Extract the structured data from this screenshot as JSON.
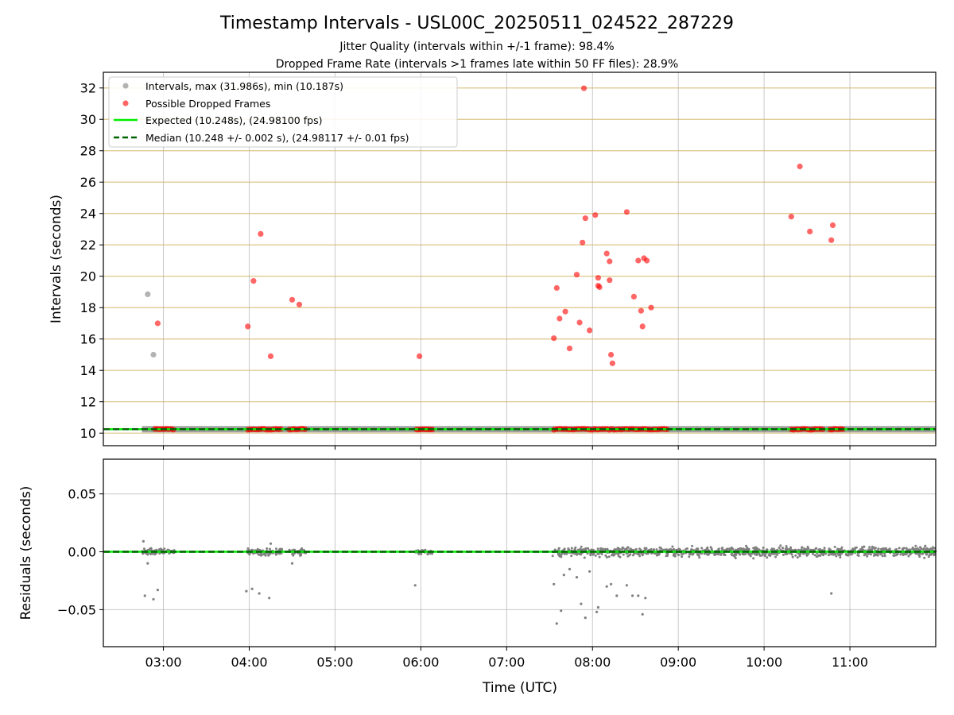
{
  "title": "Timestamp Intervals - USL00C_20250511_024522_287229",
  "subtitle1": "Jitter Quality (intervals within +/-1 frame): 98.4%",
  "subtitle2": "Dropped Frame Rate (intervals >1 frames late within 50 FF files): 28.9%",
  "colors": {
    "normal": "#808080",
    "dropped": "#ff0000",
    "expected": "#00ee00",
    "median": "#006400",
    "hgrid_top": "#d2b76a",
    "grid": "#b0b0b0"
  },
  "chart_data": [
    {
      "type": "scatter",
      "xlabel": "",
      "ylabel": "Intervals (seconds)",
      "xlim": [
        "02:18",
        "12:00"
      ],
      "ylim": [
        9.2,
        33.0
      ],
      "yticks": [
        10,
        12,
        14,
        16,
        18,
        20,
        22,
        24,
        26,
        28,
        30,
        32
      ],
      "xticks": [
        "03:00",
        "04:00",
        "05:00",
        "06:00",
        "07:00",
        "08:00",
        "09:00",
        "10:00",
        "11:00"
      ],
      "legend": {
        "placement": "top-left",
        "items": [
          "Intervals, max (31.986s), min (10.187s)",
          "Possible Dropped Frames",
          "Expected (10.248s), (24.98100 fps)",
          "Median (10.248 +/- 0.002 s), (24.98117 +/- 0.01 fps)"
        ]
      },
      "expected": 10.248,
      "median": 10.248,
      "normal_points": [
        [
          "02:49",
          18.85
        ],
        [
          "02:53",
          15.0
        ]
      ],
      "normal_baseline_ranges": [
        [
          "02:45",
          "12:00"
        ]
      ],
      "dropped_points": [
        [
          "02:56",
          17.0
        ],
        [
          "03:59",
          16.8
        ],
        [
          "04:03",
          19.7
        ],
        [
          "04:08",
          22.7
        ],
        [
          "04:15",
          14.9
        ],
        [
          "04:30",
          18.5
        ],
        [
          "04:35",
          18.2
        ],
        [
          "05:59",
          14.9
        ],
        [
          "07:33",
          16.05
        ],
        [
          "07:35",
          19.25
        ],
        [
          "07:37",
          17.3
        ],
        [
          "07:41",
          17.75
        ],
        [
          "07:44",
          15.4
        ],
        [
          "07:49",
          20.1
        ],
        [
          "07:51",
          17.05
        ],
        [
          "07:53",
          22.15
        ],
        [
          "07:54",
          31.98
        ],
        [
          "07:55",
          23.7
        ],
        [
          "07:58",
          16.55
        ],
        [
          "08:02",
          23.9
        ],
        [
          "08:04",
          19.9
        ],
        [
          "08:04",
          19.4
        ],
        [
          "08:05",
          19.3
        ],
        [
          "08:10",
          21.45
        ],
        [
          "08:12",
          20.95
        ],
        [
          "08:12",
          19.75
        ],
        [
          "08:13",
          15.0
        ],
        [
          "08:14",
          14.45
        ],
        [
          "08:24",
          24.1
        ],
        [
          "08:29",
          18.7
        ],
        [
          "08:32",
          21.0
        ],
        [
          "08:34",
          17.8
        ],
        [
          "08:35",
          16.8
        ],
        [
          "08:36",
          21.15
        ],
        [
          "08:38",
          21.0
        ],
        [
          "08:41",
          18.0
        ],
        [
          "10:19",
          23.8
        ],
        [
          "10:25",
          27.0
        ],
        [
          "10:32",
          22.85
        ],
        [
          "10:47",
          22.3
        ],
        [
          "10:48",
          23.25
        ]
      ],
      "dropped_baseline_ranges": [
        [
          "02:54",
          "03:07"
        ],
        [
          "03:59",
          "04:22"
        ],
        [
          "04:28",
          "04:39"
        ],
        [
          "05:57",
          "06:08"
        ],
        [
          "07:33",
          "08:52"
        ],
        [
          "10:19",
          "10:41"
        ],
        [
          "10:46",
          "10:55"
        ]
      ]
    },
    {
      "type": "scatter",
      "xlabel": "Time (UTC)",
      "ylabel": "Residuals (seconds)",
      "xlim": [
        "02:18",
        "12:00"
      ],
      "ylim": [
        -0.082,
        0.08
      ],
      "yticks": [
        0.05,
        0.0,
        -0.05
      ],
      "ytick_labels": [
        "0.05",
        "0.00",
        "−0.05"
      ],
      "xticks": [
        "03:00",
        "04:00",
        "05:00",
        "06:00",
        "07:00",
        "08:00",
        "09:00",
        "10:00",
        "11:00"
      ],
      "outliers": [
        [
          "02:46",
          0.009
        ],
        [
          "02:47",
          -0.038
        ],
        [
          "02:49",
          -0.01
        ],
        [
          "02:53",
          -0.041
        ],
        [
          "02:56",
          -0.033
        ],
        [
          "03:58",
          -0.034
        ],
        [
          "04:02",
          -0.032
        ],
        [
          "04:07",
          -0.036
        ],
        [
          "04:14",
          -0.04
        ],
        [
          "04:15",
          0.007
        ],
        [
          "04:30",
          -0.01
        ],
        [
          "05:56",
          -0.029
        ],
        [
          "07:33",
          -0.028
        ],
        [
          "07:35",
          -0.062
        ],
        [
          "07:38",
          -0.051
        ],
        [
          "07:40",
          -0.02
        ],
        [
          "07:44",
          -0.015
        ],
        [
          "07:49",
          -0.022
        ],
        [
          "07:52",
          -0.045
        ],
        [
          "07:55",
          -0.057
        ],
        [
          "07:58",
          -0.017
        ],
        [
          "08:03",
          -0.052
        ],
        [
          "08:04",
          -0.048
        ],
        [
          "08:10",
          -0.03
        ],
        [
          "08:13",
          -0.028
        ],
        [
          "08:17",
          -0.038
        ],
        [
          "08:24",
          -0.029
        ],
        [
          "08:28",
          -0.038
        ],
        [
          "08:32",
          -0.038
        ],
        [
          "08:35",
          -0.054
        ],
        [
          "08:37",
          -0.04
        ],
        [
          "10:47",
          -0.036
        ]
      ],
      "dense_ranges": [
        [
          "02:45",
          "03:08",
          0.004
        ],
        [
          "03:58",
          "04:23",
          0.004
        ],
        [
          "04:28",
          "04:40",
          0.004
        ],
        [
          "05:56",
          "06:08",
          0.003
        ],
        [
          "07:32",
          "12:00",
          0.006
        ]
      ]
    }
  ]
}
